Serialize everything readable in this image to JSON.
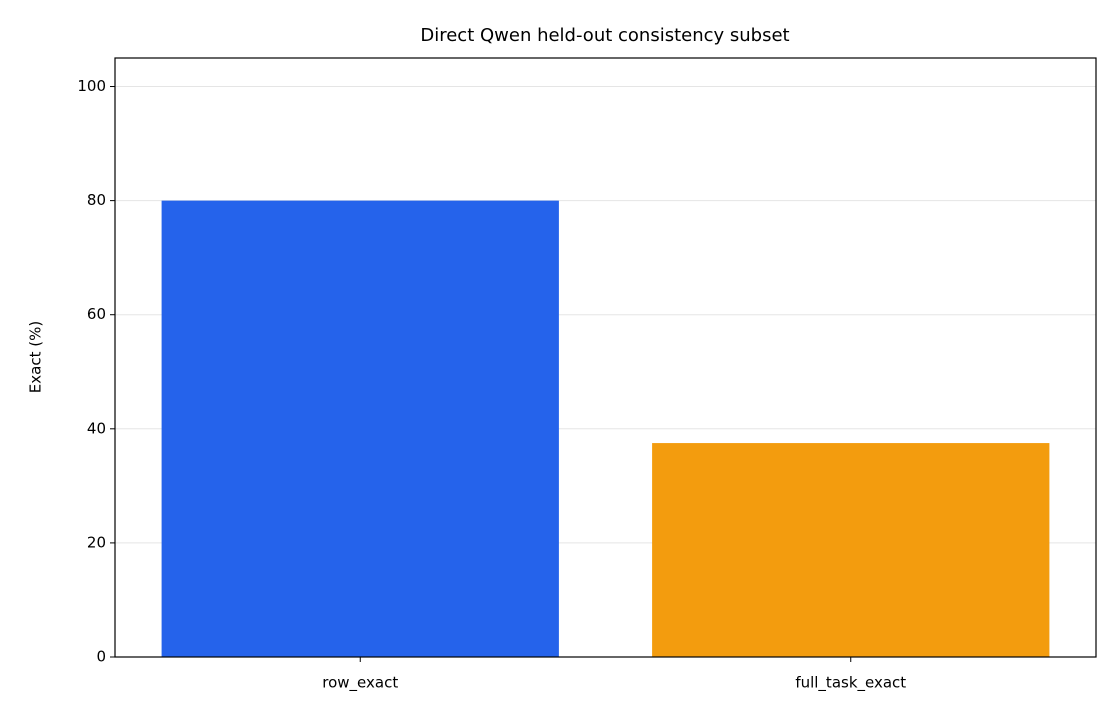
{
  "chart_data": {
    "type": "bar",
    "title": "Direct Qwen held-out consistency subset",
    "ylabel": "Exact (%)",
    "categories": [
      "row_exact",
      "full_task_exact"
    ],
    "values": [
      80,
      37.5
    ],
    "colors": [
      "#2563eb",
      "#f39c0e"
    ],
    "ylim": [
      0,
      105
    ],
    "yticks": [
      0,
      20,
      40,
      60,
      80,
      100
    ],
    "grid": true
  }
}
